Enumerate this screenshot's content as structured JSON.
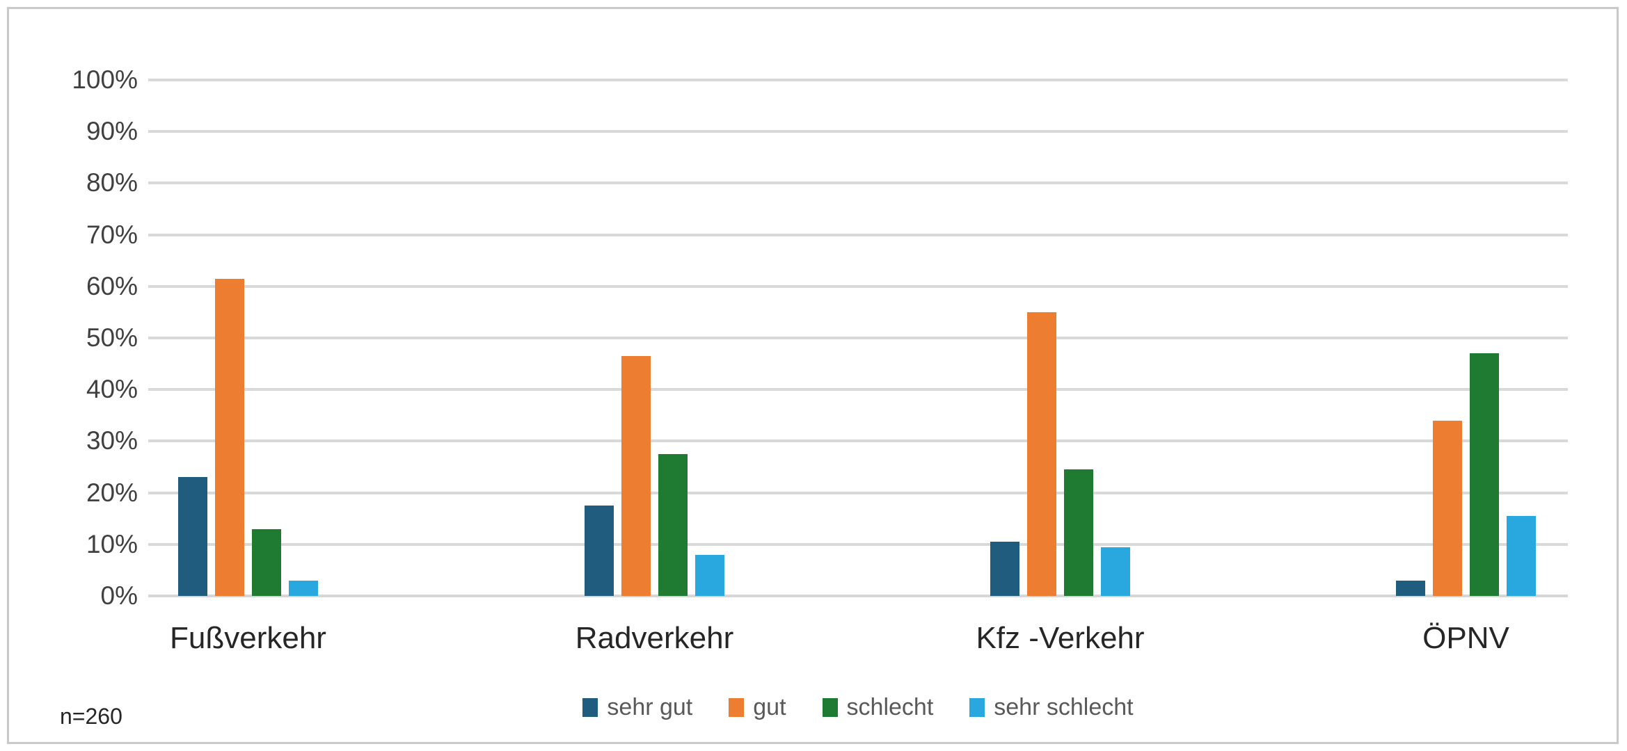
{
  "chart_data": {
    "type": "bar",
    "title": "",
    "categories": [
      "Fußverkehr",
      "Radverkehr",
      "Kfz -Verkehr",
      "ÖPNV"
    ],
    "series": [
      {
        "name": "sehr gut",
        "color": "#1f5c7d",
        "values": [
          23,
          17.5,
          10.5,
          3
        ]
      },
      {
        "name": "gut",
        "color": "#ed7d31",
        "values": [
          61.5,
          46.5,
          55,
          34
        ]
      },
      {
        "name": "schlecht",
        "color": "#1f7b31",
        "values": [
          13,
          27.5,
          24.5,
          47
        ]
      },
      {
        "name": "sehr schlecht",
        "color": "#29a8e0",
        "values": [
          3,
          8,
          9.5,
          15.5
        ]
      }
    ],
    "ylabel": "",
    "xlabel": "",
    "ylim": [
      0,
      100
    ],
    "y_ticks": [
      "100%",
      "90%",
      "80%",
      "70%",
      "60%",
      "50%",
      "40%",
      "30%",
      "20%",
      "10%",
      "0%"
    ],
    "grid": true,
    "legend_position": "bottom"
  },
  "annotation": {
    "sample_size": "n=260"
  },
  "colors": {
    "background": "#ffffff",
    "frame_border": "#c9c9c9",
    "gridline": "#d9d9d9",
    "y_tick_text": "#404040",
    "category_text": "#262626",
    "legend_text": "#595959"
  }
}
